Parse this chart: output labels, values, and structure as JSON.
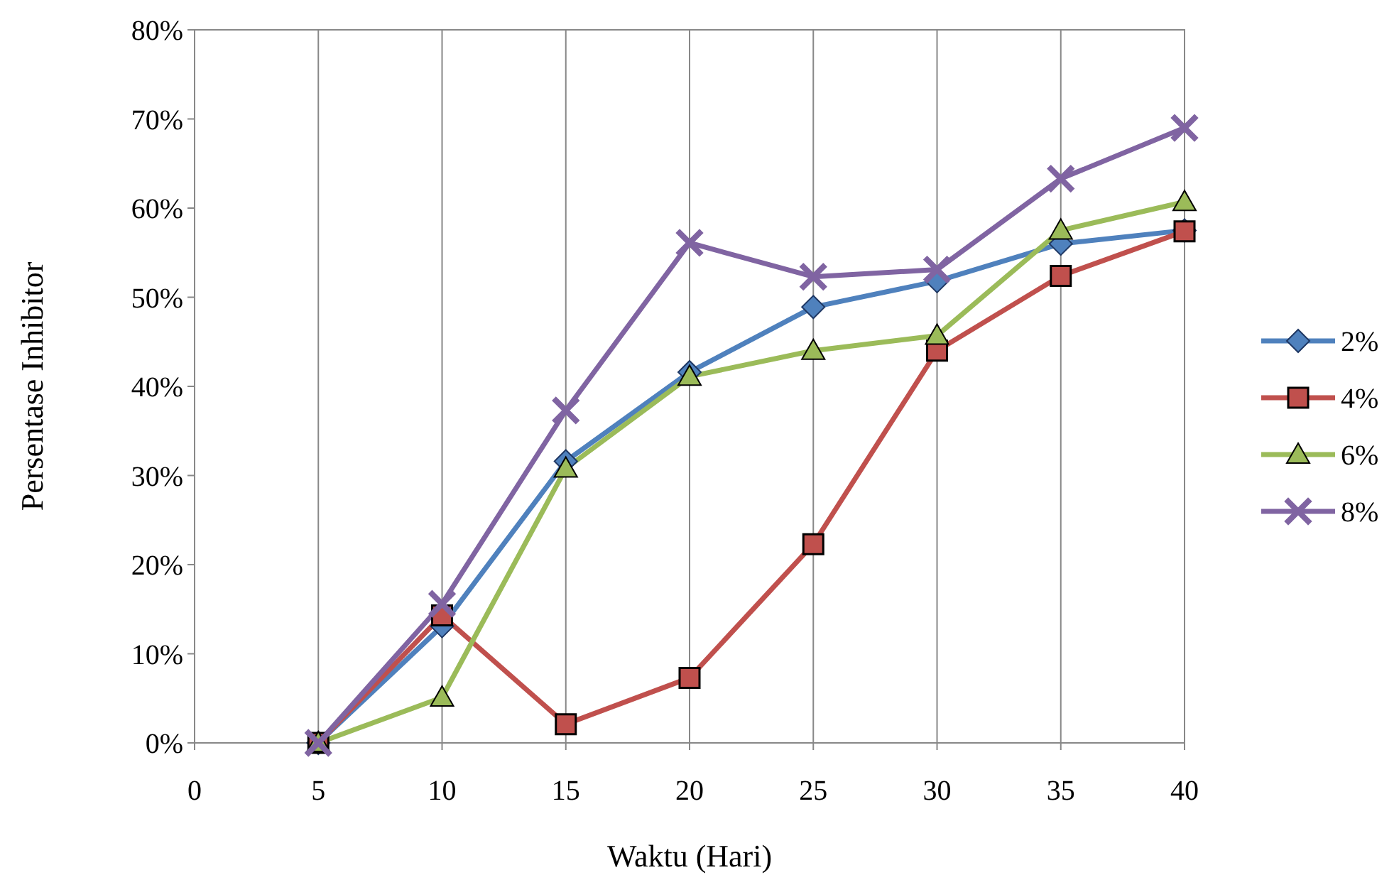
{
  "chart_data": {
    "type": "line",
    "xlabel": "Waktu (Hari)",
    "ylabel": "Persentase Inhibitor",
    "xlim": [
      0,
      40
    ],
    "xticks": [
      0,
      5,
      10,
      15,
      20,
      25,
      30,
      35,
      40
    ],
    "ylim": [
      0,
      80
    ],
    "yticks": [
      {
        "value": 0,
        "label": "0%"
      },
      {
        "value": 10,
        "label": "10%"
      },
      {
        "value": 20,
        "label": "20%"
      },
      {
        "value": 30,
        "label": "30%"
      },
      {
        "value": 40,
        "label": "40%"
      },
      {
        "value": 50,
        "label": "50%"
      },
      {
        "value": 60,
        "label": "60%"
      },
      {
        "value": 70,
        "label": "70%"
      },
      {
        "value": 80,
        "label": "80%"
      }
    ],
    "grid": "x",
    "legend": "right",
    "line_style": "solid",
    "x": [
      5,
      10,
      15,
      20,
      25,
      30,
      35,
      40
    ],
    "series": [
      {
        "name": "2%",
        "color": "#4f81bd",
        "marker": "diamond",
        "values": [
          0,
          13.1,
          31.6,
          41.6,
          48.9,
          51.8,
          56,
          57.5
        ]
      },
      {
        "name": "4%",
        "color": "#c0504d",
        "marker": "square",
        "values": [
          0,
          14.3,
          2.1,
          7.3,
          22.3,
          44,
          52.4,
          57.4
        ]
      },
      {
        "name": "6%",
        "color": "#9bbb59",
        "marker": "triangle",
        "values": [
          0,
          5.1,
          30.8,
          41.1,
          44,
          45.7,
          57.5,
          60.7
        ]
      },
      {
        "name": "8%",
        "color": "#8064a2",
        "marker": "cross",
        "values": [
          0,
          15.6,
          37.3,
          56.1,
          52.3,
          53.1,
          63.3,
          69
        ]
      }
    ]
  }
}
